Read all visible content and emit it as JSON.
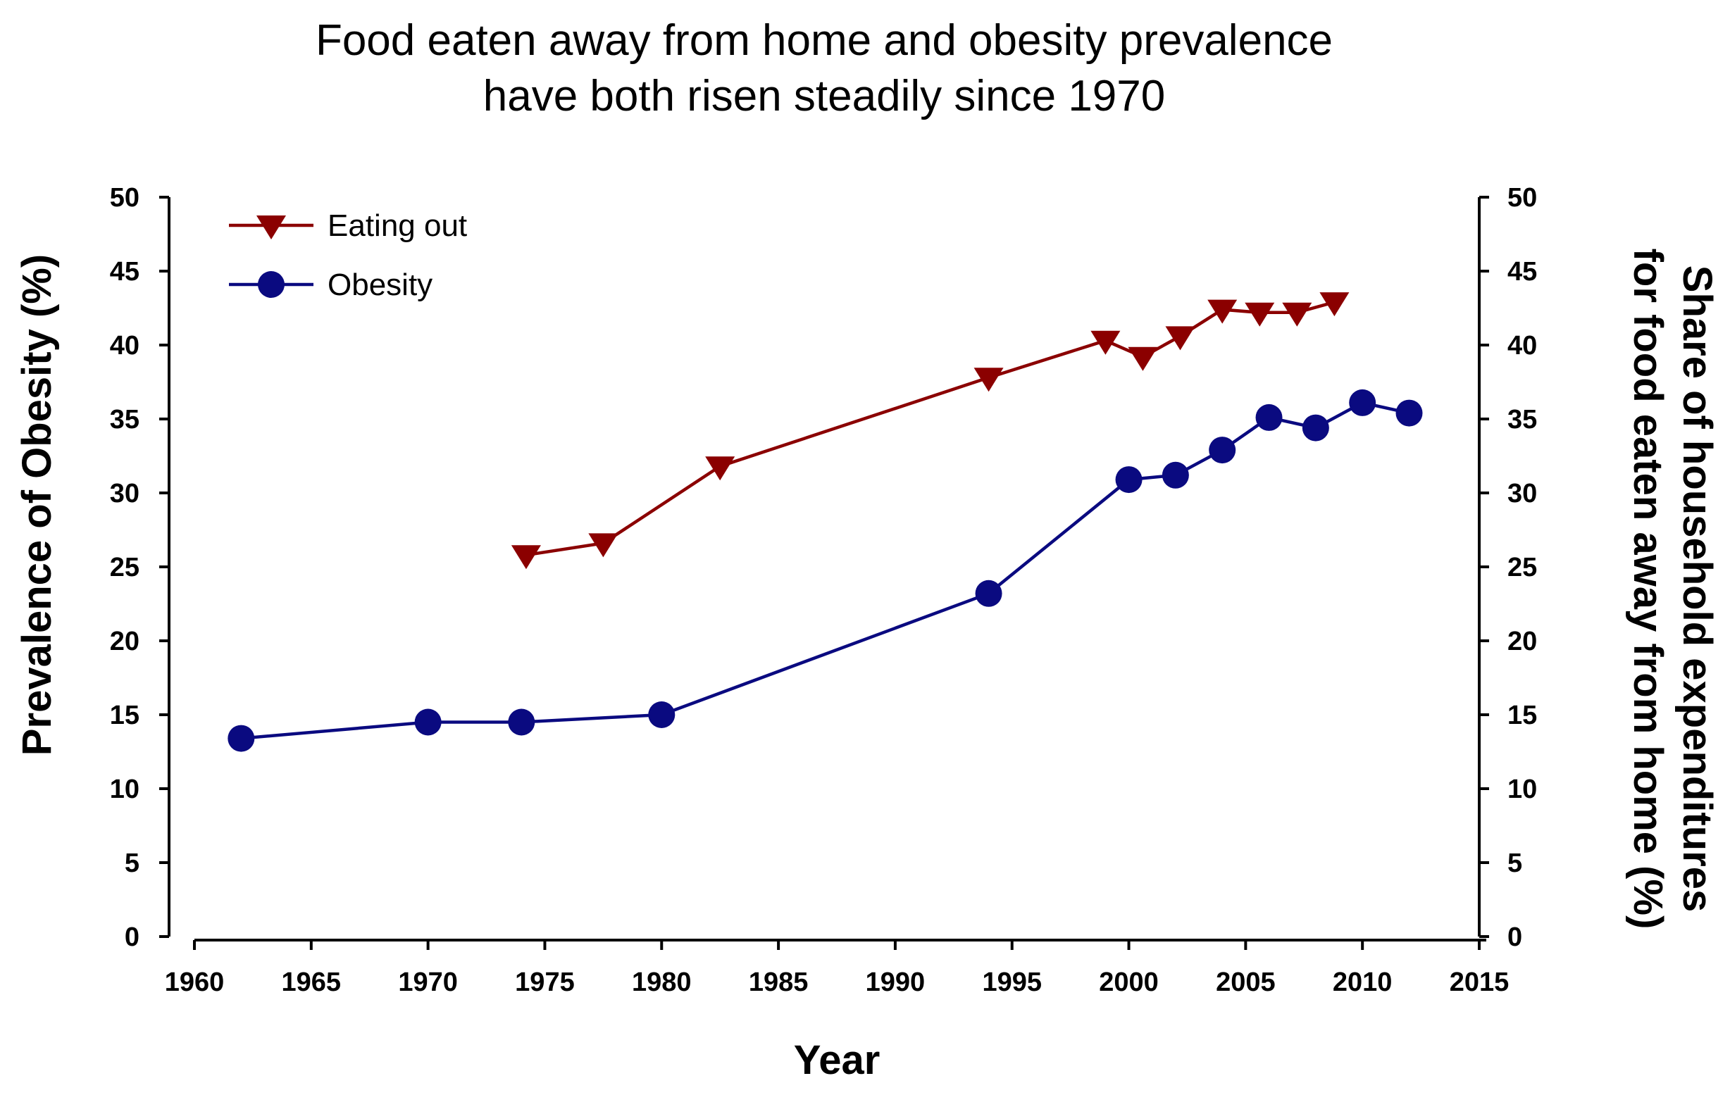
{
  "chart_data": {
    "type": "line",
    "title": [
      "Food eaten away from home and obesity prevalence",
      "have both risen steadily since 1970"
    ],
    "xlabel": "Year",
    "ylabel_left": "Prevalence of Obesity (%)",
    "ylabel_right": [
      "Share of household expenditures",
      "for food eaten away from home (%)"
    ],
    "xlim": [
      1960,
      2015
    ],
    "xticks": [
      1960,
      1965,
      1970,
      1975,
      1980,
      1985,
      1990,
      1995,
      2000,
      2005,
      2010,
      2015
    ],
    "ylim": [
      0,
      50
    ],
    "yticks": [
      0,
      5,
      10,
      15,
      20,
      25,
      30,
      35,
      40,
      45,
      50
    ],
    "grid": false,
    "legend_position": "top-left",
    "series": [
      {
        "name": "Eating out",
        "color": "#8b0000",
        "marker": "triangle-down",
        "axis": "right",
        "x": [
          1974.2,
          1977.5,
          1982.5,
          1994,
          1999,
          2000.6,
          2002.2,
          2004,
          2005.6,
          2007.2,
          2008.8
        ],
        "y": [
          25.8,
          26.6,
          31.8,
          37.8,
          40.3,
          39.2,
          40.6,
          42.4,
          42.2,
          42.2,
          42.9
        ]
      },
      {
        "name": "Obesity",
        "color": "#0a0a80",
        "marker": "circle",
        "axis": "left",
        "x": [
          1962,
          1970,
          1974,
          1980,
          1994,
          2000,
          2002,
          2004,
          2006,
          2008,
          2010,
          2012
        ],
        "y": [
          13.4,
          14.5,
          14.5,
          15.0,
          23.2,
          30.9,
          31.2,
          32.9,
          35.1,
          34.4,
          36.1,
          35.4
        ]
      }
    ]
  }
}
